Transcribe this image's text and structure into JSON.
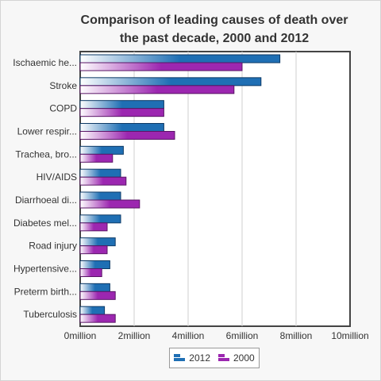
{
  "chart_data": {
    "type": "bar",
    "orientation": "horizontal",
    "title": "Comparison of leading causes of death over the past decade, 2000 and 2012",
    "categories": [
      "Ischaemic he...",
      "Stroke",
      "COPD",
      "Lower respir...",
      "Trachea, bro...",
      "HIV/AIDS",
      "Diarrhoeal di...",
      "Diabetes mel...",
      "Road injury",
      "Hypertensive...",
      "Preterm birth...",
      "Tuberculosis"
    ],
    "series": [
      {
        "name": "2012",
        "color": "#1f6fb4",
        "values": [
          7400000,
          6700000,
          3100000,
          3100000,
          1600000,
          1500000,
          1500000,
          1500000,
          1300000,
          1100000,
          1100000,
          900000
        ]
      },
      {
        "name": "2000",
        "color": "#9c27b0",
        "values": [
          6000000,
          5700000,
          3100000,
          3500000,
          1200000,
          1700000,
          2200000,
          1000000,
          1000000,
          800000,
          1300000,
          1300000
        ]
      }
    ],
    "xlim": [
      0,
      10000000
    ],
    "xticks": [
      0,
      2000000,
      4000000,
      6000000,
      8000000,
      10000000
    ],
    "xtick_labels": [
      "0million",
      "2million",
      "4million",
      "6million",
      "8million",
      "10million"
    ],
    "xlabel": "",
    "ylabel": "",
    "grid": true,
    "legend_position": "bottom"
  },
  "legend": [
    {
      "label": "2012",
      "color": "#1f6fb4"
    },
    {
      "label": "2000",
      "color": "#9c27b0"
    }
  ]
}
